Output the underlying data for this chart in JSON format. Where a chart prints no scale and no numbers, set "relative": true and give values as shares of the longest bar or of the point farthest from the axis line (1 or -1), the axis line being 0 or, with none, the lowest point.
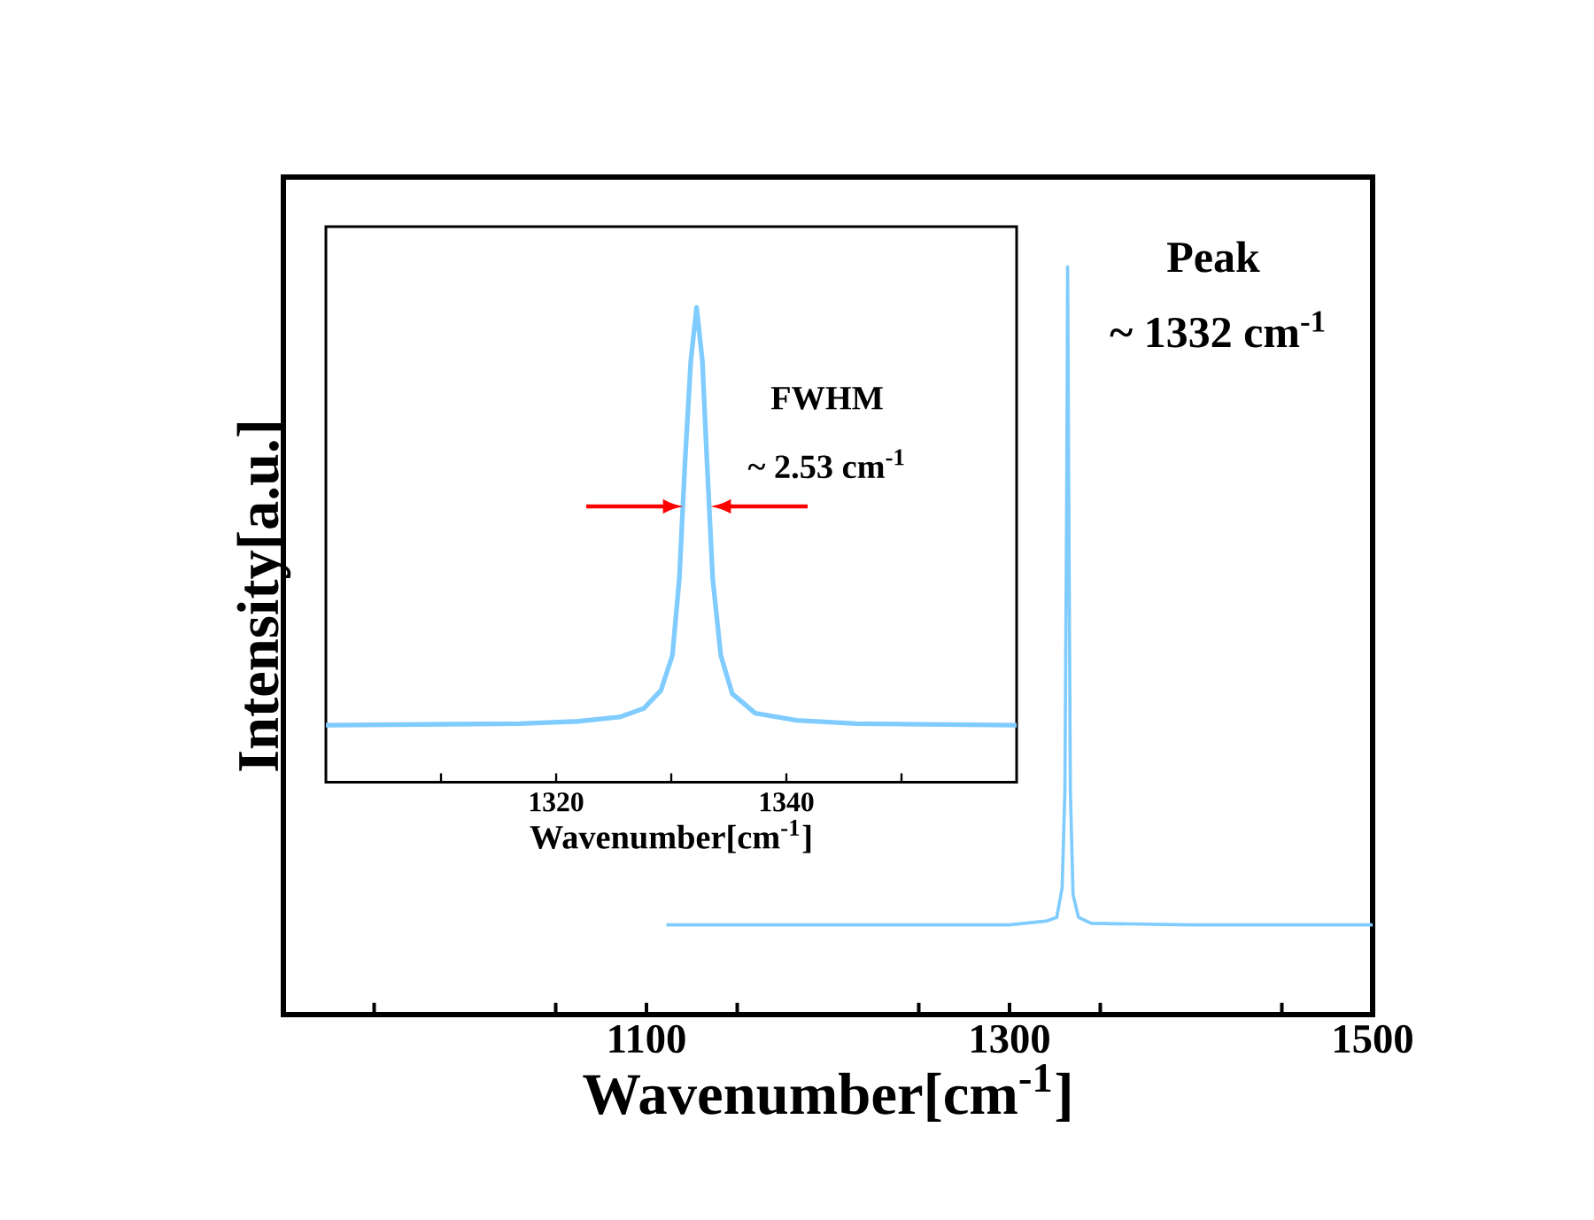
{
  "chart_data": [
    {
      "type": "line",
      "xlabel": "Wavenumber[cm$^{-1}$]",
      "ylabel": "Intensity[a.u.]",
      "relative": true,
      "tick_labels": "x",
      "xlim": [
        900,
        1500
      ],
      "xticks": [
        {
          "value": 950,
          "label": null
        },
        {
          "value": 1050,
          "label": null
        },
        1100,
        {
          "value": 1150,
          "label": null
        },
        {
          "value": 1250,
          "label": null
        },
        1300,
        {
          "value": 1350,
          "label": null
        },
        {
          "value": 1450,
          "label": null
        },
        1500
      ],
      "x": [
        1111,
        1200,
        1300,
        1320,
        1326,
        1329,
        1330.5,
        1331.5,
        1332,
        1332.5,
        1333.5,
        1335,
        1338,
        1345,
        1400,
        1500
      ],
      "series": [
        {
          "color": "#80ccff",
          "values": [
            0.12,
            0.12,
            0.12,
            0.125,
            0.13,
            0.17,
            0.3,
            0.7,
            1.0,
            0.75,
            0.3,
            0.16,
            0.13,
            0.122,
            0.12,
            0.12
          ]
        }
      ],
      "annotations": [
        "Peak",
        "~ 1332 cm$^{-1}$"
      ]
    },
    {
      "type": "line",
      "xlabel": "Wavenumber[cm$^{-1}$]",
      "relative": true,
      "tick_labels": "x",
      "xlim": [
        1300,
        1360
      ],
      "xticks": [
        {
          "value": 1310,
          "label": null
        },
        1320,
        {
          "value": 1330,
          "label": null
        },
        1340,
        {
          "value": 1350,
          "label": null
        }
      ],
      "x": [
        1300,
        1316.8,
        1321.9,
        1325.5,
        1327.6,
        1329.1,
        1330.1,
        1330.7,
        1331.2,
        1331.7,
        1332.2,
        1332.7,
        1333.1,
        1333.6,
        1334.3,
        1335.3,
        1337.3,
        1340.9,
        1346.1,
        1360
      ],
      "series": [
        {
          "color": "#80ccff",
          "values": [
            0.12,
            0.123,
            0.128,
            0.137,
            0.155,
            0.193,
            0.267,
            0.429,
            0.677,
            0.888,
            1.0,
            0.888,
            0.677,
            0.429,
            0.267,
            0.186,
            0.145,
            0.13,
            0.123,
            0.12
          ]
        }
      ],
      "annotations": [
        "FWHM",
        "~ 2.53 cm$^{-1}$"
      ]
    }
  ]
}
